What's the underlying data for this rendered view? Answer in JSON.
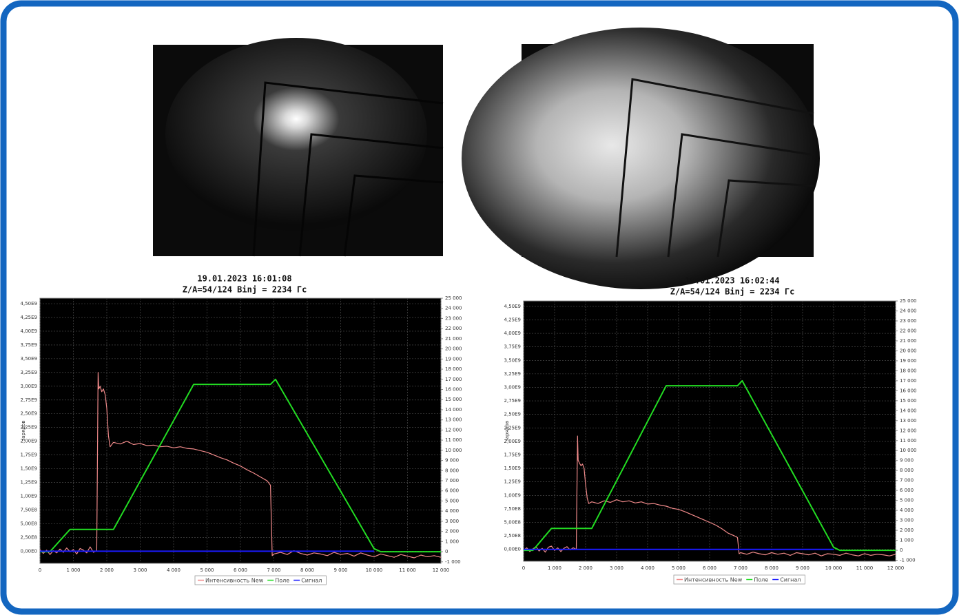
{
  "chart_data": [
    {
      "type": "line",
      "title": "19.01.2023 16:01:08",
      "subtitle": "Z/A=54/124  Binj = 2234 Гс",
      "ylabel": "зарядов",
      "xlim": [
        0,
        12000
      ],
      "xticks": [
        0,
        {
          "value": 1000,
          "label": "1 000"
        },
        {
          "value": 2000,
          "label": "2 000"
        },
        {
          "value": 3000,
          "label": "3 000"
        },
        {
          "value": 4000,
          "label": "4 000"
        },
        {
          "value": 5000,
          "label": "5 000"
        },
        {
          "value": 6000,
          "label": "6 000"
        },
        {
          "value": 7000,
          "label": "7 000"
        },
        {
          "value": 8000,
          "label": "8 000"
        },
        {
          "value": 9000,
          "label": "9 000"
        },
        {
          "value": 10000,
          "label": "10 000"
        },
        {
          "value": 11000,
          "label": "11 000"
        },
        {
          "value": 12000,
          "label": "12 000"
        }
      ],
      "ylim": [
        -220000000.0,
        4600000000.0
      ],
      "yticks": [
        {
          "value": 0,
          "label": "0,00E0"
        },
        {
          "value": 250000000.0,
          "label": "2,50E8"
        },
        {
          "value": 500000000.0,
          "label": "5,00E8"
        },
        {
          "value": 750000000.0,
          "label": "7,50E8"
        },
        {
          "value": 1000000000.0,
          "label": "1,00E9"
        },
        {
          "value": 1250000000.0,
          "label": "1,25E9"
        },
        {
          "value": 1500000000.0,
          "label": "1,50E9"
        },
        {
          "value": 1750000000.0,
          "label": "1,75E9"
        },
        {
          "value": 2000000000.0,
          "label": "2,00E9"
        },
        {
          "value": 2250000000.0,
          "label": "2,25E9"
        },
        {
          "value": 2500000000.0,
          "label": "2,50E9"
        },
        {
          "value": 2750000000.0,
          "label": "2,75E9"
        },
        {
          "value": 3000000000.0,
          "label": "3,00E9"
        },
        {
          "value": 3250000000.0,
          "label": "3,25E9"
        },
        {
          "value": 3500000000.0,
          "label": "3,50E9"
        },
        {
          "value": 3750000000.0,
          "label": "3,75E9"
        },
        {
          "value": 4000000000.0,
          "label": "4,00E9"
        },
        {
          "value": 4250000000.0,
          "label": "4,25E9"
        },
        {
          "value": 4500000000.0,
          "label": "4,50E9"
        }
      ],
      "y2lim": [
        -1150,
        25000
      ],
      "y2ticks": [
        {
          "value": -1000,
          "label": "-1 000"
        },
        0,
        {
          "value": 1000,
          "label": "1 000"
        },
        {
          "value": 2000,
          "label": "2 000"
        },
        {
          "value": 3000,
          "label": "3 000"
        },
        {
          "value": 4000,
          "label": "4 000"
        },
        {
          "value": 5000,
          "label": "5 000"
        },
        {
          "value": 6000,
          "label": "6 000"
        },
        {
          "value": 7000,
          "label": "7 000"
        },
        {
          "value": 8000,
          "label": "8 000"
        },
        {
          "value": 9000,
          "label": "9 000"
        },
        {
          "value": 10000,
          "label": "10 000"
        },
        {
          "value": 11000,
          "label": "11 000"
        },
        {
          "value": 12000,
          "label": "12 000"
        },
        {
          "value": 13000,
          "label": "13 000"
        },
        {
          "value": 14000,
          "label": "14 000"
        },
        {
          "value": 15000,
          "label": "15 000"
        },
        {
          "value": 16000,
          "label": "16 000"
        },
        {
          "value": 17000,
          "label": "17 000"
        },
        {
          "value": 18000,
          "label": "18 000"
        },
        {
          "value": 19000,
          "label": "19 000"
        },
        {
          "value": 20000,
          "label": "20 000"
        },
        {
          "value": 21000,
          "label": "21 000"
        },
        {
          "value": 22000,
          "label": "22 000"
        },
        {
          "value": 23000,
          "label": "23 000"
        },
        {
          "value": 24000,
          "label": "24 000"
        },
        {
          "value": 25000,
          "label": "25 000"
        }
      ],
      "grid": true,
      "series": [
        {
          "name": "Интенсивность New",
          "color": "#f08a8a",
          "axis": "y",
          "x": [
            0,
            100,
            200,
            300,
            400,
            500,
            600,
            700,
            800,
            900,
            1000,
            1100,
            1200,
            1300,
            1400,
            1500,
            1600,
            1700,
            1740,
            1760,
            1800,
            1850,
            1900,
            1950,
            2000,
            2050,
            2100,
            2200,
            2400,
            2600,
            2800,
            3000,
            3200,
            3400,
            3600,
            3800,
            4000,
            4200,
            4400,
            4600,
            4800,
            5000,
            5200,
            5400,
            5600,
            5800,
            6000,
            6200,
            6400,
            6600,
            6800,
            6900,
            6950,
            7000,
            7200,
            7400,
            7600,
            7800,
            8000,
            8200,
            8400,
            8600,
            8800,
            9000,
            9200,
            9400,
            9600,
            9800,
            10000,
            10200,
            10400,
            10600,
            10800,
            11000,
            11200,
            11400,
            11600,
            11800,
            12000
          ],
          "values": [
            30000000.0,
            -40000000.0,
            20000000.0,
            -60000000.0,
            10000000.0,
            -30000000.0,
            40000000.0,
            -20000000.0,
            60000000.0,
            -10000000.0,
            30000000.0,
            -50000000.0,
            50000000.0,
            20000000.0,
            -30000000.0,
            80000000.0,
            -20000000.0,
            10000000.0,
            3250000000.0,
            2950000000.0,
            3000000000.0,
            2900000000.0,
            2950000000.0,
            2850000000.0,
            2600000000.0,
            2100000000.0,
            1900000000.0,
            1980000000.0,
            1950000000.0,
            2000000000.0,
            1940000000.0,
            1960000000.0,
            1920000000.0,
            1930000000.0,
            1900000000.0,
            1910000000.0,
            1880000000.0,
            1900000000.0,
            1870000000.0,
            1860000000.0,
            1830000000.0,
            1800000000.0,
            1750000000.0,
            1700000000.0,
            1660000000.0,
            1600000000.0,
            1550000000.0,
            1480000000.0,
            1420000000.0,
            1350000000.0,
            1280000000.0,
            1200000000.0,
            -80000000.0,
            -50000000.0,
            -20000000.0,
            -60000000.0,
            10000000.0,
            -40000000.0,
            -70000000.0,
            -30000000.0,
            -50000000.0,
            -80000000.0,
            -20000000.0,
            -60000000.0,
            -40000000.0,
            -90000000.0,
            -30000000.0,
            -70000000.0,
            -100000000.0,
            -50000000.0,
            -80000000.0,
            -110000000.0,
            -60000000.0,
            -90000000.0,
            -120000000.0,
            -70000000.0,
            -100000000.0,
            -80000000.0,
            -110000000.0
          ]
        },
        {
          "name": "Поле",
          "color": "#22dd22",
          "axis": "y2",
          "x": [
            0,
            300,
            900,
            2200,
            4600,
            6900,
            7050,
            10000,
            10200,
            12000
          ],
          "values": [
            0,
            0,
            2200,
            2200,
            16500,
            16500,
            17000,
            300,
            0,
            0
          ]
        },
        {
          "name": "Сигнал",
          "color": "#1a1aff",
          "axis": "y",
          "x": [
            0,
            10000
          ],
          "values": [
            0,
            0
          ]
        }
      ]
    },
    {
      "type": "line",
      "title": "19.01.2023 16:02:44",
      "subtitle": "Z/A=54/124  Binj = 2234 Гс",
      "ylabel": "зарядов",
      "xlim": [
        0,
        12000
      ],
      "xticks": [
        0,
        {
          "value": 1000,
          "label": "1 000"
        },
        {
          "value": 2000,
          "label": "2 000"
        },
        {
          "value": 3000,
          "label": "3 000"
        },
        {
          "value": 4000,
          "label": "4 000"
        },
        {
          "value": 5000,
          "label": "5 000"
        },
        {
          "value": 6000,
          "label": "6 000"
        },
        {
          "value": 7000,
          "label": "7 000"
        },
        {
          "value": 8000,
          "label": "8 000"
        },
        {
          "value": 9000,
          "label": "9 000"
        },
        {
          "value": 10000,
          "label": "10 000"
        },
        {
          "value": 11000,
          "label": "11 000"
        },
        {
          "value": 12000,
          "label": "12 000"
        }
      ],
      "ylim": [
        -220000000.0,
        4600000000.0
      ],
      "yticks": [
        {
          "value": 0,
          "label": "0,00E0"
        },
        {
          "value": 250000000.0,
          "label": "2,50E8"
        },
        {
          "value": 500000000.0,
          "label": "5,00E8"
        },
        {
          "value": 750000000.0,
          "label": "7,50E8"
        },
        {
          "value": 1000000000.0,
          "label": "1,00E9"
        },
        {
          "value": 1250000000.0,
          "label": "1,25E9"
        },
        {
          "value": 1500000000.0,
          "label": "1,50E9"
        },
        {
          "value": 1750000000.0,
          "label": "1,75E9"
        },
        {
          "value": 2000000000.0,
          "label": "2,00E9"
        },
        {
          "value": 2250000000.0,
          "label": "2,25E9"
        },
        {
          "value": 2500000000.0,
          "label": "2,50E9"
        },
        {
          "value": 2750000000.0,
          "label": "2,75E9"
        },
        {
          "value": 3000000000.0,
          "label": "3,00E9"
        },
        {
          "value": 3250000000.0,
          "label": "3,25E9"
        },
        {
          "value": 3500000000.0,
          "label": "3,50E9"
        },
        {
          "value": 3750000000.0,
          "label": "3,75E9"
        },
        {
          "value": 4000000000.0,
          "label": "4,00E9"
        },
        {
          "value": 4250000000.0,
          "label": "4,25E9"
        },
        {
          "value": 4500000000.0,
          "label": "4,50E9"
        }
      ],
      "y2lim": [
        -1100,
        25000
      ],
      "y2ticks": [
        {
          "value": -1000,
          "label": "-1 000"
        },
        0,
        {
          "value": 1000,
          "label": "1 000"
        },
        {
          "value": 2000,
          "label": "2 000"
        },
        {
          "value": 3000,
          "label": "3 000"
        },
        {
          "value": 4000,
          "label": "4 000"
        },
        {
          "value": 5000,
          "label": "5 000"
        },
        {
          "value": 6000,
          "label": "6 000"
        },
        {
          "value": 7000,
          "label": "7 000"
        },
        {
          "value": 8000,
          "label": "8 000"
        },
        {
          "value": 9000,
          "label": "9 000"
        },
        {
          "value": 10000,
          "label": "10 000"
        },
        {
          "value": 11000,
          "label": "11 000"
        },
        {
          "value": 12000,
          "label": "12 000"
        },
        {
          "value": 13000,
          "label": "13 000"
        },
        {
          "value": 14000,
          "label": "14 000"
        },
        {
          "value": 15000,
          "label": "15 000"
        },
        {
          "value": 16000,
          "label": "16 000"
        },
        {
          "value": 17000,
          "label": "17 000"
        },
        {
          "value": 18000,
          "label": "18 000"
        },
        {
          "value": 19000,
          "label": "19 000"
        },
        {
          "value": 20000,
          "label": "20 000"
        },
        {
          "value": 21000,
          "label": "21 000"
        },
        {
          "value": 22000,
          "label": "22 000"
        },
        {
          "value": 23000,
          "label": "23 000"
        },
        {
          "value": 24000,
          "label": "24 000"
        },
        {
          "value": 25000,
          "label": "25 000"
        }
      ],
      "grid": true,
      "series": [
        {
          "name": "Интенсивность New",
          "color": "#f08a8a",
          "axis": "y",
          "x": [
            0,
            100,
            200,
            300,
            400,
            500,
            600,
            700,
            800,
            900,
            1000,
            1100,
            1200,
            1300,
            1400,
            1500,
            1600,
            1700,
            1740,
            1760,
            1800,
            1850,
            1900,
            1950,
            2000,
            2050,
            2100,
            2200,
            2400,
            2600,
            2800,
            3000,
            3200,
            3400,
            3600,
            3800,
            4000,
            4200,
            4400,
            4600,
            4800,
            5000,
            5200,
            5400,
            5600,
            5800,
            6000,
            6200,
            6400,
            6600,
            6800,
            6900,
            6950,
            7000,
            7200,
            7400,
            7600,
            7800,
            8000,
            8200,
            8400,
            8600,
            8800,
            9000,
            9200,
            9400,
            9600,
            9800,
            10000,
            10200,
            10400,
            10600,
            10800,
            11000,
            11200,
            11400,
            11600,
            11800,
            12000
          ],
          "values": [
            -20000000.0,
            30000000.0,
            -40000000.0,
            10000000.0,
            50000000.0,
            -30000000.0,
            20000000.0,
            -50000000.0,
            40000000.0,
            60000000.0,
            -20000000.0,
            30000000.0,
            -40000000.0,
            20000000.0,
            50000000.0,
            -10000000.0,
            30000000.0,
            0.0,
            2100000000.0,
            1650000000.0,
            1600000000.0,
            1550000000.0,
            1580000000.0,
            1500000000.0,
            1200000000.0,
            950000000.0,
            850000000.0,
            880000000.0,
            850000000.0,
            900000000.0,
            870000000.0,
            920000000.0,
            880000000.0,
            900000000.0,
            860000000.0,
            880000000.0,
            840000000.0,
            850000000.0,
            820000000.0,
            800000000.0,
            760000000.0,
            740000000.0,
            700000000.0,
            650000000.0,
            600000000.0,
            550000000.0,
            500000000.0,
            450000000.0,
            380000000.0,
            300000000.0,
            250000000.0,
            220000000.0,
            -80000000.0,
            -60000000.0,
            -90000000.0,
            -50000000.0,
            -80000000.0,
            -100000000.0,
            -60000000.0,
            -90000000.0,
            -70000000.0,
            -110000000.0,
            -60000000.0,
            -80000000.0,
            -100000000.0,
            -70000000.0,
            -120000000.0,
            -80000000.0,
            -90000000.0,
            -110000000.0,
            -70000000.0,
            -100000000.0,
            -120000000.0,
            -80000000.0,
            -110000000.0,
            -90000000.0,
            -100000000.0,
            -120000000.0,
            -90000000.0
          ]
        },
        {
          "name": "Поле",
          "color": "#22dd22",
          "axis": "y2",
          "x": [
            0,
            300,
            900,
            2200,
            4600,
            6900,
            7050,
            10000,
            10200,
            12000
          ],
          "values": [
            0,
            0,
            2200,
            2200,
            16500,
            16500,
            17000,
            300,
            0,
            0
          ]
        },
        {
          "name": "Сигнал",
          "color": "#1a1aff",
          "axis": "y",
          "x": [
            0,
            10000
          ],
          "values": [
            0,
            0
          ]
        }
      ]
    }
  ]
}
